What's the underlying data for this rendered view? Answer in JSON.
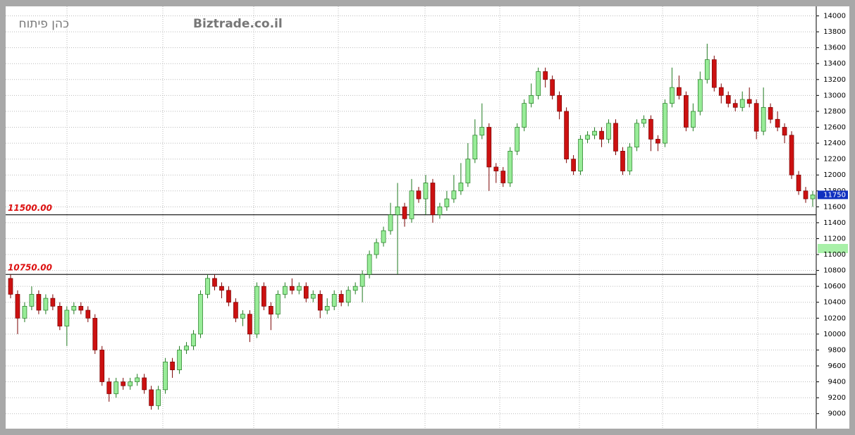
{
  "chart_data": {
    "type": "candlestick",
    "brand": "Biztrade.co.il",
    "instrument": "כהן פיתוח",
    "up_color": "#98ec98",
    "up_border": "#1f7a1f",
    "down_color": "#cc1111",
    "down_border": "#7a0000",
    "open": [
      10700,
      10500,
      10200,
      10350,
      10500,
      10300,
      10450,
      10350,
      10100,
      10300,
      10350,
      10300,
      10200,
      9800,
      9400,
      9250,
      9400,
      9350,
      9400,
      9450,
      9300,
      9100,
      9300,
      9650,
      9550,
      9800,
      9850,
      10000,
      10500,
      10700,
      10600,
      10550,
      10400,
      10200,
      10250,
      10000,
      10600,
      10350,
      10250,
      10500,
      10600,
      10550,
      10600,
      10450,
      10500,
      10300,
      10350,
      10500,
      10400,
      10550,
      10600,
      10750,
      11000,
      11150,
      11300,
      11500,
      11600,
      11450,
      11800,
      11700,
      11900,
      11500,
      11600,
      11700,
      11800,
      11900,
      12200,
      12500,
      12600,
      12100,
      12050,
      11900,
      12300,
      12600,
      12900,
      13000,
      13300,
      13200,
      13000,
      12800,
      12200,
      12050,
      12450,
      12500,
      12550,
      12450,
      12650,
      12300,
      12050,
      12350,
      12650,
      12700,
      12450,
      12400,
      12900,
      13100,
      13000,
      12600,
      12800,
      13200,
      13450,
      13100,
      13000,
      12900,
      12850,
      12950,
      12900,
      12550,
      12850,
      12700,
      12600,
      12500,
      12000,
      11800,
      11700
    ],
    "high": [
      10750,
      10550,
      10400,
      10600,
      10550,
      10500,
      10500,
      10400,
      10350,
      10400,
      10400,
      10350,
      10250,
      9850,
      9450,
      9450,
      9450,
      9450,
      9500,
      9500,
      9350,
      9350,
      9700,
      9700,
      9850,
      9900,
      10050,
      10550,
      10750,
      10750,
      10650,
      10600,
      10450,
      10300,
      10300,
      10650,
      10650,
      10400,
      10550,
      10650,
      10700,
      10650,
      10650,
      10550,
      10550,
      10450,
      10550,
      10550,
      10600,
      10650,
      10800,
      11050,
      11200,
      11350,
      11650,
      11900,
      11650,
      11950,
      11850,
      12000,
      11950,
      11650,
      11800,
      12000,
      12150,
      12400,
      12700,
      12900,
      12650,
      12150,
      12100,
      12350,
      12650,
      12950,
      13150,
      13350,
      13350,
      13250,
      13050,
      12850,
      12250,
      12500,
      12550,
      12600,
      12600,
      12700,
      12700,
      12350,
      12400,
      12700,
      12750,
      12750,
      12500,
      12950,
      13350,
      13250,
      13050,
      12900,
      13300,
      13650,
      13500,
      13150,
      13050,
      12950,
      13050,
      13100,
      12950,
      13100,
      12900,
      12800,
      12650,
      12550,
      12050,
      11850,
      11800
    ],
    "low": [
      10450,
      10000,
      10150,
      10300,
      10250,
      10250,
      10300,
      10050,
      9850,
      10250,
      10250,
      10150,
      9750,
      9350,
      9150,
      9200,
      9300,
      9300,
      9350,
      9250,
      9050,
      9050,
      9250,
      9450,
      9500,
      9750,
      9800,
      9950,
      10450,
      10550,
      10450,
      10350,
      10150,
      10100,
      9900,
      9950,
      10300,
      10050,
      10200,
      10450,
      10500,
      10500,
      10400,
      10400,
      10200,
      10250,
      10300,
      10350,
      10350,
      10500,
      10400,
      10700,
      10950,
      11100,
      11250,
      10750,
      11350,
      11400,
      11650,
      11500,
      11400,
      11450,
      11550,
      11650,
      11750,
      11850,
      12150,
      12450,
      11800,
      11900,
      11850,
      11850,
      12250,
      12550,
      12850,
      12950,
      13100,
      12950,
      12700,
      12150,
      12000,
      12000,
      12400,
      12450,
      12350,
      12400,
      12250,
      12000,
      12000,
      12300,
      12600,
      12300,
      12300,
      12350,
      12850,
      12950,
      12550,
      12550,
      12750,
      13150,
      13050,
      12900,
      12850,
      12800,
      12800,
      12850,
      12450,
      12500,
      12650,
      12550,
      12400,
      11950,
      11750,
      11650,
      11600
    ],
    "close": [
      10500,
      10200,
      10350,
      10500,
      10300,
      10450,
      10350,
      10100,
      10300,
      10350,
      10300,
      10200,
      9800,
      9400,
      9250,
      9400,
      9350,
      9400,
      9450,
      9300,
      9100,
      9300,
      9650,
      9550,
      9800,
      9850,
      10000,
      10500,
      10700,
      10600,
      10550,
      10400,
      10200,
      10250,
      10000,
      10600,
      10350,
      10250,
      10500,
      10600,
      10550,
      10600,
      10450,
      10500,
      10300,
      10350,
      10500,
      10400,
      10550,
      10600,
      10750,
      11000,
      11150,
      11300,
      11500,
      11600,
      11450,
      11800,
      11700,
      11900,
      11500,
      11600,
      11700,
      11800,
      11900,
      12200,
      12500,
      12600,
      12100,
      12050,
      11900,
      12300,
      12600,
      12900,
      13000,
      13300,
      13200,
      13000,
      12800,
      12200,
      12050,
      12450,
      12500,
      12550,
      12450,
      12650,
      12300,
      12050,
      12350,
      12650,
      12700,
      12450,
      12400,
      12900,
      13100,
      13000,
      12600,
      12800,
      13200,
      13450,
      13100,
      13000,
      12900,
      12850,
      12950,
      12900,
      12550,
      12850,
      12700,
      12600,
      12500,
      12000,
      11800,
      11700,
      11750
    ],
    "ylim": [
      8820,
      14120
    ],
    "yticks": [
      9000,
      9200,
      9400,
      9600,
      9800,
      10000,
      10200,
      10400,
      10600,
      10800,
      11000,
      11200,
      11400,
      11600,
      11800,
      12000,
      12200,
      12400,
      12600,
      12800,
      13000,
      13200,
      13400,
      13600,
      13800,
      14000
    ],
    "grid": true,
    "levels": [
      {
        "value": 11500,
        "label": "11500.00"
      },
      {
        "value": 10750,
        "label": "10750.00"
      }
    ],
    "last_price": 11750
  }
}
